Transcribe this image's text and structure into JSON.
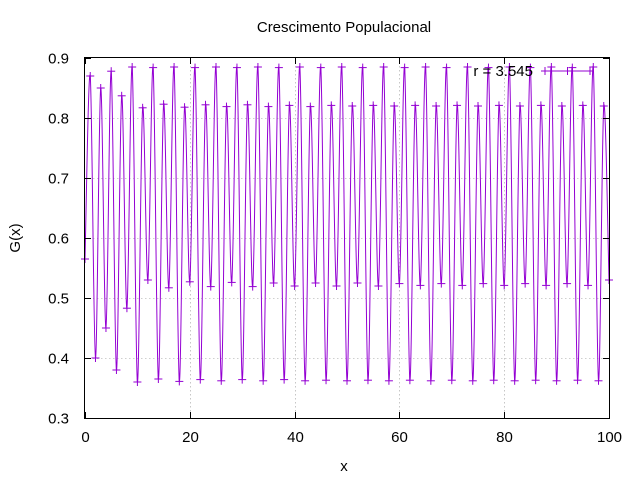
{
  "chart_data": {
    "type": "line",
    "title": "Crescimento Populacional",
    "xlabel": "x",
    "ylabel": "G(x)",
    "xlim": [
      0,
      100
    ],
    "ylim": [
      0.3,
      0.9
    ],
    "xticks": [
      "0",
      "20",
      "40",
      "60",
      "80",
      "100"
    ],
    "yticks": [
      "0.3",
      "0.4",
      "0.5",
      "0.6",
      "0.7",
      "0.8",
      "0.9"
    ],
    "grid": true,
    "legend_position": "top-right",
    "series": [
      {
        "name": "r = 3.545",
        "color": "#9400d3",
        "marker": "plus",
        "x": [
          0,
          1,
          2,
          3,
          4,
          5,
          6,
          7,
          8,
          9,
          10,
          11,
          12,
          13,
          14,
          15,
          16,
          17,
          18,
          19,
          20,
          21,
          22,
          23,
          24,
          25,
          26,
          27,
          28,
          29,
          30,
          31,
          32,
          33,
          34,
          35,
          36,
          37,
          38,
          39,
          40,
          41,
          42,
          43,
          44,
          45,
          46,
          47,
          48,
          49,
          50,
          51,
          52,
          53,
          54,
          55,
          56,
          57,
          58,
          59,
          60,
          61,
          62,
          63,
          64,
          65,
          66,
          67,
          68,
          69,
          70,
          71,
          72,
          73,
          74,
          75,
          76,
          77,
          78,
          79,
          80,
          81,
          82,
          83,
          84,
          85,
          86,
          87,
          88,
          89,
          90,
          91,
          92,
          93,
          94,
          95,
          96,
          97,
          98,
          99,
          100
        ],
        "y": [
          0.565,
          0.87,
          0.4,
          0.85,
          0.45,
          0.878,
          0.38,
          0.837,
          0.483,
          0.885,
          0.36,
          0.817,
          0.53,
          0.884,
          0.365,
          0.823,
          0.517,
          0.885,
          0.361,
          0.818,
          0.527,
          0.884,
          0.364,
          0.822,
          0.519,
          0.885,
          0.362,
          0.819,
          0.526,
          0.884,
          0.364,
          0.822,
          0.519,
          0.885,
          0.362,
          0.819,
          0.525,
          0.884,
          0.364,
          0.821,
          0.52,
          0.885,
          0.362,
          0.819,
          0.525,
          0.884,
          0.363,
          0.821,
          0.52,
          0.885,
          0.362,
          0.82,
          0.525,
          0.884,
          0.363,
          0.821,
          0.52,
          0.885,
          0.362,
          0.82,
          0.524,
          0.884,
          0.363,
          0.821,
          0.521,
          0.885,
          0.362,
          0.82,
          0.524,
          0.884,
          0.363,
          0.821,
          0.521,
          0.885,
          0.362,
          0.82,
          0.524,
          0.884,
          0.363,
          0.821,
          0.521,
          0.885,
          0.362,
          0.82,
          0.524,
          0.884,
          0.363,
          0.821,
          0.521,
          0.885,
          0.362,
          0.82,
          0.524,
          0.884,
          0.363,
          0.821,
          0.521,
          0.885,
          0.362,
          0.82,
          0.53
        ]
      }
    ]
  }
}
